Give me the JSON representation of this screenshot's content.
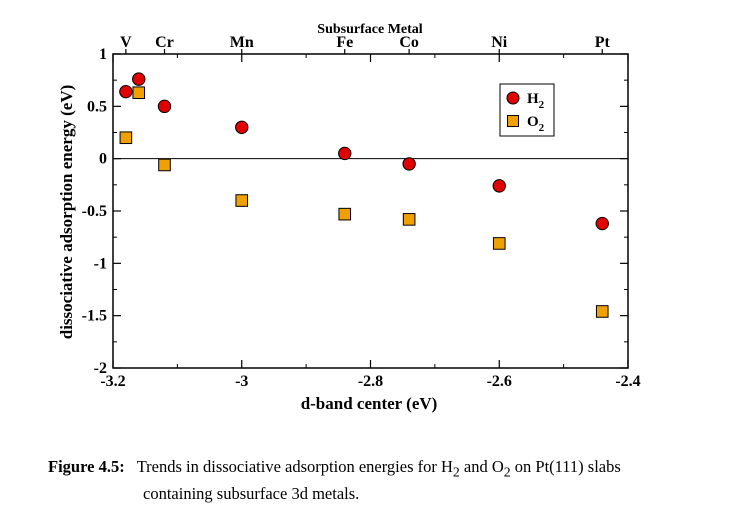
{
  "chart_data": {
    "type": "scatter",
    "xlabel": "d-band center (eV)",
    "ylabel": "dissociative adsorption energy (eV)",
    "top_axis_title": "Subsurface Metal",
    "xlim": [
      -3.2,
      -2.4
    ],
    "ylim": [
      -2,
      1
    ],
    "x_ticks": [
      -3.2,
      -3,
      -2.8,
      -2.6,
      -2.4
    ],
    "x_tick_labels": [
      "-3.2",
      "-3",
      "-2.8",
      "-2.6",
      "-2.4"
    ],
    "y_ticks": [
      1,
      0.5,
      0,
      -0.5,
      -1,
      -1.5,
      -2
    ],
    "y_tick_labels": [
      "1",
      "0.5",
      "0",
      "-0.5",
      "-1",
      "-1.5",
      "-2"
    ],
    "zero_line": true,
    "grid": false,
    "legend_position": "top-right",
    "top_labels": [
      {
        "text": "V",
        "x": -3.18
      },
      {
        "text": "Cr",
        "x": -3.12
      },
      {
        "text": "Mn",
        "x": -3.0
      },
      {
        "text": "Fe",
        "x": -2.84
      },
      {
        "text": "Co",
        "x": -2.74
      },
      {
        "text": "Ni",
        "x": -2.6
      },
      {
        "text": "Pt",
        "x": -2.44
      }
    ],
    "series": [
      {
        "name_main": "H",
        "name_sub": "2",
        "marker": "circle",
        "color": "#e00000",
        "points": [
          {
            "x": -3.18,
            "y": 0.64
          },
          {
            "x": -3.16,
            "y": 0.76
          },
          {
            "x": -3.12,
            "y": 0.5
          },
          {
            "x": -3.0,
            "y": 0.3
          },
          {
            "x": -2.84,
            "y": 0.05
          },
          {
            "x": -2.74,
            "y": -0.05
          },
          {
            "x": -2.6,
            "y": -0.26
          },
          {
            "x": -2.44,
            "y": -0.62
          }
        ]
      },
      {
        "name_main": "O",
        "name_sub": "2",
        "marker": "square",
        "color": "#f0a000",
        "points": [
          {
            "x": -3.18,
            "y": 0.2
          },
          {
            "x": -3.16,
            "y": 0.63
          },
          {
            "x": -3.12,
            "y": -0.06
          },
          {
            "x": -3.0,
            "y": -0.4
          },
          {
            "x": -2.84,
            "y": -0.53
          },
          {
            "x": -2.74,
            "y": -0.58
          },
          {
            "x": -2.6,
            "y": -0.81
          },
          {
            "x": -2.44,
            "y": -1.46
          }
        ]
      }
    ]
  },
  "caption": {
    "label": "Figure 4.5:",
    "p1": "Trends in dissociative adsorption energies for H",
    "sub1": "2",
    "p2": " and O",
    "sub2": "2",
    "p3": " on Pt(111) slabs",
    "line2": "containing subsurface 3d metals."
  }
}
